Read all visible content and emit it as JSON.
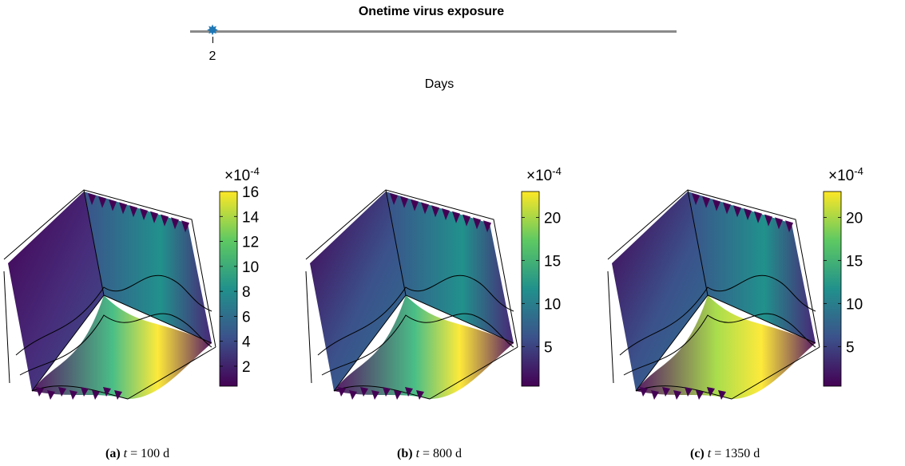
{
  "timeline": {
    "title": "Onetime virus exposure",
    "event_day": 2,
    "tick_label": "2",
    "xlabel": "Days"
  },
  "panels": [
    {
      "caption_label": "(a)",
      "caption_var": "t",
      "caption_rest": "= 100 d",
      "colorbar": {
        "exponent_label": "×10",
        "exponent": "-4",
        "ticks": [
          "16",
          "14",
          "12",
          "10",
          "8",
          "6",
          "4",
          "2"
        ],
        "max": 16,
        "min": 0.4
      }
    },
    {
      "caption_label": "(b)",
      "caption_var": "t",
      "caption_rest": "= 800 d",
      "colorbar": {
        "exponent_label": "×10",
        "exponent": "-4",
        "ticks": [
          "20",
          "15",
          "10",
          "5"
        ],
        "max": 23,
        "min": 0.4
      }
    },
    {
      "caption_label": "(c)",
      "caption_var": "t",
      "caption_rest": "= 1350 d",
      "colorbar": {
        "exponent_label": "×10",
        "exponent": "-4",
        "ticks": [
          "20",
          "15",
          "10",
          "5"
        ],
        "max": 23,
        "min": 0.4
      }
    }
  ],
  "colors": {
    "viridis_low": "#440154",
    "viridis_mid": "#21918c",
    "viridis_high": "#fde725",
    "timeline_marker": "#1f77b4",
    "timeline_line": "#8a8a8a"
  }
}
